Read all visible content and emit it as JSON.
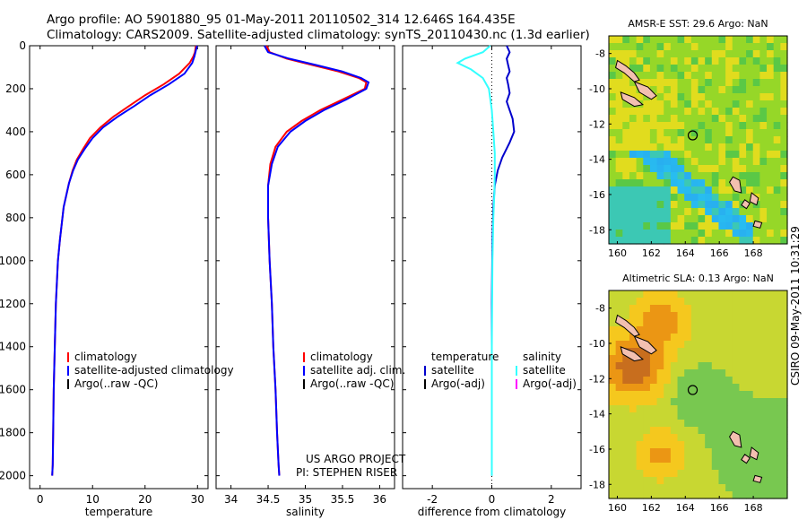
{
  "header": {
    "line1": "Argo profile: AO 5901880_95 01-May-2011 20110502_314 12.646S 164.435E",
    "line2": "Climatology: CARS2009. Satellite-adjusted climatology: synTS_20110430.nc (1.3d earlier)"
  },
  "stamp": "CSIRO 09-May-2011 10:31:29",
  "credit": [
    "US ARGO PROJECT",
    "PI: STEPHEN RISER"
  ],
  "colors": {
    "climatology": "#ff0000",
    "satellite": "#0000ff",
    "argo": "#000000",
    "diff_temp": "#0000cc",
    "diff_sal": "#33ffff",
    "diff_sal_argo": "#ff00ff"
  },
  "chart_data": [
    {
      "type": "line",
      "xlabel": "temperature",
      "xlim": [
        -2,
        32
      ],
      "xticks": [
        0,
        10,
        20,
        30
      ],
      "ylim": [
        2060,
        0
      ],
      "yticks": [
        0,
        200,
        400,
        600,
        800,
        1000,
        1200,
        1400,
        1600,
        1800,
        2000
      ],
      "legend": [
        "climatology",
        "satellite-adjusted climatology",
        "Argo(..raw -QC)"
      ],
      "series": [
        {
          "name": "climatology",
          "x": [
            29.7,
            29.5,
            29.2,
            28.5,
            26.5,
            23.5,
            20,
            17,
            14,
            11.5,
            9.5,
            8.2,
            7,
            6.2,
            5.5,
            4.5,
            3.8,
            3.4,
            3,
            2.8,
            2.6,
            2.5,
            2.4,
            2.3
          ],
          "y": [
            0,
            30,
            50,
            80,
            130,
            180,
            230,
            280,
            330,
            380,
            430,
            480,
            530,
            580,
            640,
            750,
            900,
            1000,
            1200,
            1400,
            1600,
            1800,
            1950,
            2000
          ]
        },
        {
          "name": "satellite-adjusted climatology",
          "x": [
            29.9,
            29.6,
            29.4,
            29,
            27.5,
            24.5,
            21,
            18,
            14.8,
            12,
            10,
            8.5,
            7.2,
            6.3,
            5.5,
            4.5,
            3.8,
            3.4,
            3,
            2.8,
            2.6,
            2.5,
            2.4,
            2.3
          ],
          "y": [
            0,
            30,
            50,
            80,
            130,
            180,
            230,
            280,
            330,
            380,
            430,
            480,
            530,
            580,
            640,
            750,
            900,
            1000,
            1200,
            1400,
            1600,
            1800,
            1950,
            2000
          ]
        }
      ]
    },
    {
      "type": "line",
      "xlabel": "salinity",
      "xlim": [
        33.8,
        36.2
      ],
      "xticks": [
        34,
        34.5,
        35,
        35.5,
        36
      ],
      "ylim": [
        2060,
        0
      ],
      "yticks": [
        0,
        200,
        400,
        600,
        800,
        1000,
        1200,
        1400,
        1600,
        1800,
        2000
      ],
      "legend": [
        "climatology",
        "satellite adj. clim.",
        "Argo(..raw -QC)"
      ],
      "series": [
        {
          "name": "climatology",
          "x": [
            34.48,
            34.52,
            34.75,
            35.1,
            35.45,
            35.72,
            35.82,
            35.8,
            35.5,
            35.2,
            34.95,
            34.75,
            34.6,
            34.53,
            34.5,
            34.5,
            34.52,
            34.55,
            34.57,
            34.6,
            34.62,
            34.64,
            34.65
          ],
          "y": [
            0,
            30,
            60,
            90,
            120,
            150,
            170,
            200,
            250,
            300,
            350,
            400,
            470,
            550,
            650,
            800,
            1000,
            1200,
            1400,
            1600,
            1800,
            1950,
            2000
          ]
        },
        {
          "name": "satellite adj. clim.",
          "x": [
            34.45,
            34.5,
            34.78,
            35.15,
            35.5,
            35.75,
            35.85,
            35.82,
            35.55,
            35.25,
            35,
            34.8,
            34.63,
            34.55,
            34.5,
            34.5,
            34.52,
            34.55,
            34.57,
            34.6,
            34.62,
            34.64,
            34.65
          ],
          "y": [
            0,
            30,
            60,
            90,
            120,
            150,
            170,
            200,
            250,
            300,
            350,
            400,
            470,
            550,
            650,
            800,
            1000,
            1200,
            1400,
            1600,
            1800,
            1950,
            2000
          ]
        }
      ]
    },
    {
      "type": "line",
      "xlabel": "difference from climatology",
      "xlim": [
        -3,
        3
      ],
      "xticks": [
        -2,
        0,
        2
      ],
      "ylim": [
        2060,
        0
      ],
      "yticks": [
        0,
        200,
        400,
        600,
        800,
        1000,
        1200,
        1400,
        1600,
        1800,
        2000
      ],
      "legend_titles": [
        "temperature",
        "salinity"
      ],
      "legend": [
        "satellite",
        "Argo(-adj)",
        "satellite",
        "Argo(-adj)"
      ],
      "series": [
        {
          "name": "temperature satellite",
          "x": [
            0.5,
            0.6,
            0.5,
            0.55,
            0.6,
            0.5,
            0.55,
            0.6,
            0.5,
            0.6,
            0.7,
            0.75,
            0.6,
            0.35,
            0.2,
            0.1,
            0.05,
            0.02,
            0.0,
            0.0,
            0.0,
            0.0
          ],
          "y": [
            0,
            30,
            60,
            90,
            120,
            150,
            180,
            220,
            260,
            300,
            340,
            400,
            450,
            520,
            580,
            650,
            750,
            900,
            1200,
            1500,
            1800,
            2000
          ]
        },
        {
          "name": "salinity satellite",
          "x": [
            -0.05,
            -0.3,
            -0.9,
            -1.15,
            -0.7,
            -0.3,
            -0.1,
            0.0,
            0.05,
            0.1,
            0.1,
            0.08,
            0.05,
            0.02,
            0.0,
            0.0,
            0.0
          ],
          "y": [
            0,
            30,
            60,
            80,
            110,
            150,
            200,
            300,
            400,
            500,
            600,
            700,
            800,
            1000,
            1400,
            1800,
            2000
          ]
        }
      ]
    }
  ],
  "maps": [
    {
      "title": "AMSR-E SST: 29.6 Argo: NaN",
      "xticks": [
        "160",
        "162",
        "164",
        "166",
        "168"
      ],
      "yticks": [
        "-8",
        "-10",
        "-12",
        "-14",
        "-16",
        "-18"
      ]
    },
    {
      "title": "Altimetric SLA: 0.13 Argo: NaN",
      "xticks": [
        "160",
        "162",
        "164",
        "166",
        "168"
      ],
      "yticks": [
        "-8",
        "-10",
        "-12",
        "-14",
        "-16",
        "-18"
      ]
    }
  ]
}
